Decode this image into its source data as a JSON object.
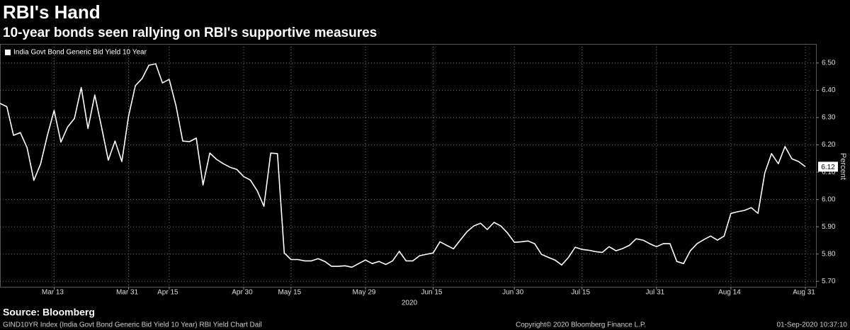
{
  "chart_data": {
    "type": "line",
    "title": "RBI's Hand",
    "subtitle": "10-year bonds seen rallying on RBI's supportive measures",
    "y_axis_label": "Percent",
    "x_year_label": "2020",
    "source": "Source: Bloomberg",
    "footer_left": "GIND10YR Index (India Govt Bond Generic Bid Yield 10 Year) RBI Yield Chart  Dail",
    "footer_center": "Copyright© 2020 Bloomberg Finance L.P.",
    "footer_right": "01-Sep-2020 10:37:10",
    "grid": true,
    "legend_position": "top-left",
    "categories": [
      null,
      null,
      null,
      null,
      null,
      null,
      null,
      null,
      "Mar 13",
      null,
      null,
      null,
      null,
      null,
      null,
      null,
      null,
      null,
      null,
      "Mar 31",
      null,
      null,
      null,
      null,
      null,
      "Apr 15",
      null,
      null,
      null,
      null,
      null,
      null,
      null,
      null,
      null,
      null,
      "Apr 30",
      null,
      null,
      null,
      null,
      null,
      null,
      "May 15",
      null,
      null,
      null,
      null,
      null,
      null,
      null,
      null,
      null,
      null,
      "May 29",
      null,
      null,
      null,
      null,
      null,
      null,
      null,
      null,
      null,
      "Jun 15",
      null,
      null,
      null,
      null,
      null,
      null,
      null,
      null,
      null,
      null,
      null,
      "Jun 30",
      null,
      null,
      null,
      null,
      null,
      null,
      null,
      null,
      null,
      "Jul 15",
      null,
      null,
      null,
      null,
      null,
      null,
      null,
      null,
      null,
      null,
      "Jul 31",
      null,
      null,
      null,
      null,
      null,
      null,
      null,
      null,
      null,
      null,
      "Aug 14",
      null,
      null,
      null,
      null,
      null,
      null,
      null,
      null,
      null,
      null,
      "Aug 31"
    ],
    "series": [
      {
        "name": "India Govt Bond Generic Bid Yield 10 Year",
        "color": "#ffffff",
        "values": [
          6.352,
          6.34,
          6.235,
          6.245,
          6.19,
          6.07,
          6.13,
          6.235,
          6.326,
          6.21,
          6.266,
          6.297,
          6.41,
          6.26,
          6.383,
          6.266,
          6.144,
          6.214,
          6.139,
          6.305,
          6.417,
          6.443,
          6.492,
          6.497,
          6.427,
          6.44,
          6.344,
          6.214,
          6.212,
          6.225,
          6.053,
          6.17,
          6.147,
          6.131,
          6.118,
          6.11,
          6.084,
          6.071,
          6.032,
          5.975,
          6.17,
          6.168,
          5.804,
          5.78,
          5.78,
          5.775,
          5.775,
          5.783,
          5.773,
          5.755,
          5.755,
          5.757,
          5.752,
          5.765,
          5.778,
          5.765,
          5.773,
          5.762,
          5.775,
          5.81,
          5.775,
          5.775,
          5.794,
          5.799,
          5.804,
          5.845,
          5.832,
          5.819,
          5.851,
          5.882,
          5.903,
          5.913,
          5.89,
          5.916,
          5.903,
          5.877,
          5.843,
          5.845,
          5.848,
          5.838,
          5.799,
          5.788,
          5.778,
          5.76,
          5.788,
          5.825,
          5.817,
          5.814,
          5.809,
          5.806,
          5.827,
          5.812,
          5.82,
          5.832,
          5.856,
          5.851,
          5.838,
          5.827,
          5.838,
          5.838,
          5.773,
          5.765,
          5.812,
          5.838,
          5.853,
          5.866,
          5.851,
          5.866,
          5.949,
          5.955,
          5.96,
          5.97,
          5.949,
          6.097,
          6.168,
          6.131,
          6.194,
          6.149,
          6.139,
          6.12
        ]
      }
    ],
    "ylim": [
      5.68,
      6.57
    ],
    "yticks": [
      {
        "value": 5.7,
        "label": "5.70"
      },
      {
        "value": 5.8,
        "label": "5.80"
      },
      {
        "value": 5.9,
        "label": "5.90"
      },
      {
        "value": 6,
        "label": "6.00"
      },
      {
        "value": 6.1,
        "label": "6.10"
      },
      {
        "value": 6.2,
        "label": "6.20"
      },
      {
        "value": 6.3,
        "label": "6.30"
      },
      {
        "value": 6.4,
        "label": "6.40"
      },
      {
        "value": 6.5,
        "label": "6.50"
      }
    ]
  }
}
